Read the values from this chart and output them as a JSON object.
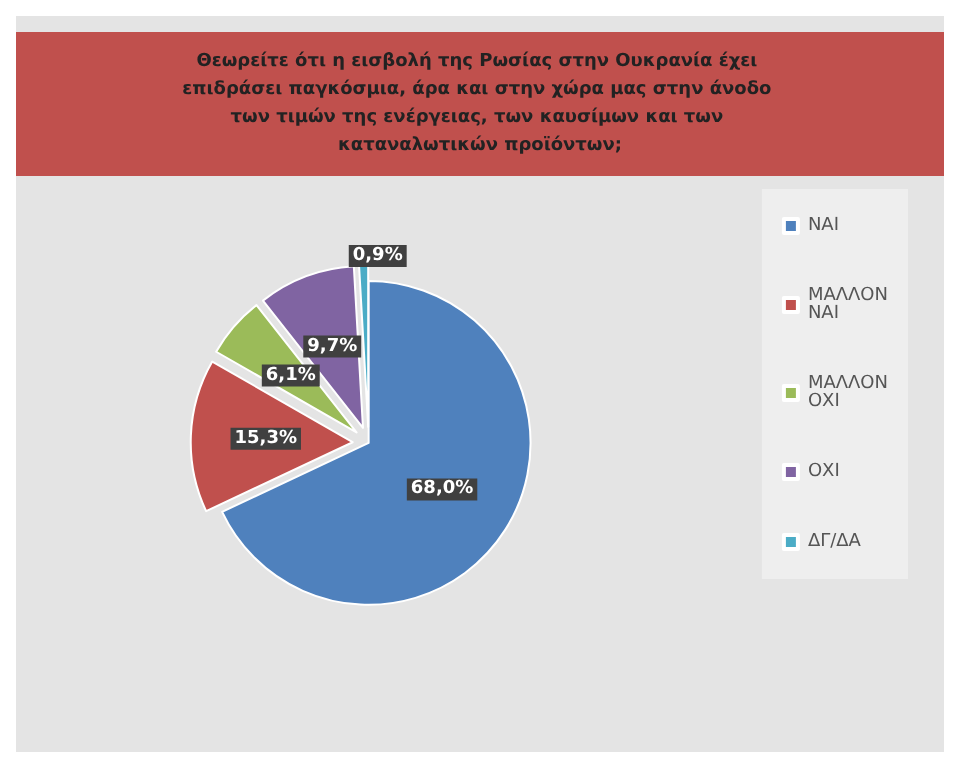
{
  "chart_data": {
    "type": "pie",
    "title": "Θεωρείτε ότι η εισβολή της Ρωσίας στην Ουκρανία έχει επιδράσει παγκόσμια, άρα και στην χώρα μας στην άνοδο των τιμών της ενέργειας, των καυσίμων και των καταναλωτικών προϊόντων;",
    "categories": [
      "ΝΑΙ",
      "ΜΑΛΛΟΝ ΝΑΙ",
      "ΜΑΛΛΟΝ ΟΧΙ",
      "ΟΧΙ",
      "ΔΓ/ΔΑ"
    ],
    "values": [
      68.0,
      15.3,
      6.1,
      9.7,
      0.9
    ],
    "value_labels": [
      "68,0%",
      "15,3%",
      "6,1%",
      "9,7%",
      "0,9%"
    ],
    "colors": [
      "#4f81bd",
      "#c0504d",
      "#9bbb59",
      "#8064a2",
      "#4bacc6"
    ],
    "legend": "right"
  }
}
